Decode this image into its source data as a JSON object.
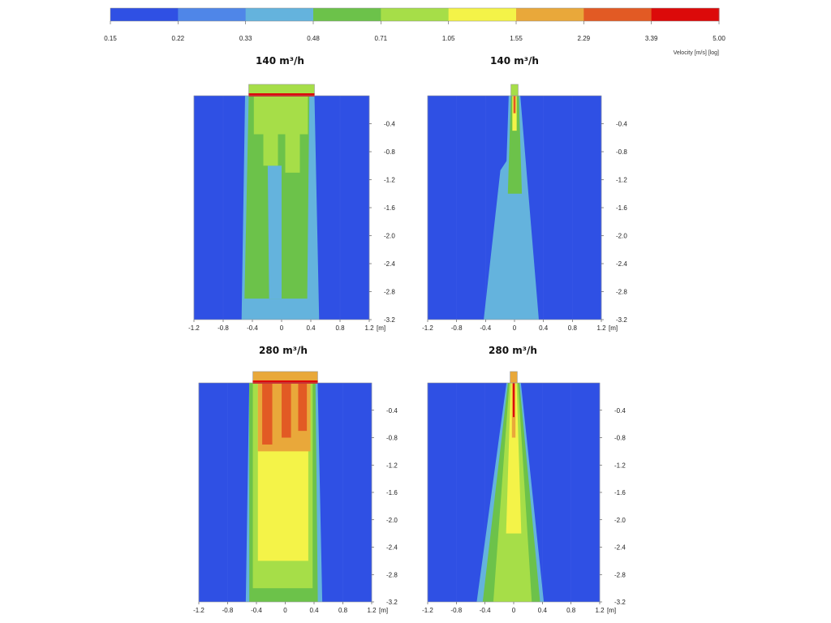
{
  "colorbar": {
    "ticks": [
      "0.15",
      "0.22",
      "0.33",
      "0.48",
      "0.71",
      "1.05",
      "1.55",
      "2.29",
      "3.39",
      "5.00"
    ],
    "colors": [
      "#2f50e4",
      "#4f86e8",
      "#64b3dd",
      "#6cc24a",
      "#a6de48",
      "#f4f348",
      "#e9a83a",
      "#e25a24",
      "#dc0a0a"
    ],
    "label": "Velocity [m/s] [log]"
  },
  "chart_data": [
    {
      "type": "heatmap",
      "title": "140 m³/h",
      "x_ticks": [
        "-1.2",
        "-0.8",
        "-0.4",
        "0",
        "0.4",
        "0.8",
        "1.2"
      ],
      "y_ticks": [
        "-0.4",
        "-0.8",
        "-1.2",
        "-1.6",
        "-2.0",
        "-2.4",
        "-2.8",
        "-3.2"
      ],
      "x_unit": "[m]",
      "xlim": [
        -1.2,
        1.2
      ],
      "ylim": [
        -3.2,
        0
      ],
      "inlet": "wide",
      "value_range_m_s": [
        0.15,
        5.0
      ]
    },
    {
      "type": "heatmap",
      "title": "140 m³/h",
      "x_ticks": [
        "-1.2",
        "-0.8",
        "-0.4",
        "0",
        "0.4",
        "0.8",
        "1.2"
      ],
      "y_ticks": [
        "-0.4",
        "-0.8",
        "-1.2",
        "-1.6",
        "-2.0",
        "-2.4",
        "-2.8",
        "-3.2"
      ],
      "x_unit": "[m]",
      "xlim": [
        -1.2,
        1.2
      ],
      "ylim": [
        -3.2,
        0
      ],
      "inlet": "narrow",
      "value_range_m_s": [
        0.15,
        5.0
      ]
    },
    {
      "type": "heatmap",
      "title": "280 m³/h",
      "x_ticks": [
        "-1.2",
        "-0.8",
        "-0.4",
        "0",
        "0.4",
        "0.8",
        "1.2"
      ],
      "y_ticks": [
        "-0.4",
        "-0.8",
        "-1.2",
        "-1.6",
        "-2.0",
        "-2.4",
        "-2.8",
        "-3.2"
      ],
      "x_unit": "[m]",
      "xlim": [
        -1.2,
        1.2
      ],
      "ylim": [
        -3.2,
        0
      ],
      "inlet": "wide",
      "value_range_m_s": [
        0.15,
        5.0
      ]
    },
    {
      "type": "heatmap",
      "title": "280 m³/h",
      "x_ticks": [
        "-1.2",
        "-0.8",
        "-0.4",
        "0",
        "0.4",
        "0.8",
        "1.2"
      ],
      "y_ticks": [
        "-0.4",
        "-0.8",
        "-1.2",
        "-1.6",
        "-2.0",
        "-2.4",
        "-2.8",
        "-3.2"
      ],
      "x_unit": "[m]",
      "xlim": [
        -1.2,
        1.2
      ],
      "ylim": [
        -3.2,
        0
      ],
      "inlet": "narrow",
      "value_range_m_s": [
        0.15,
        5.0
      ]
    }
  ]
}
